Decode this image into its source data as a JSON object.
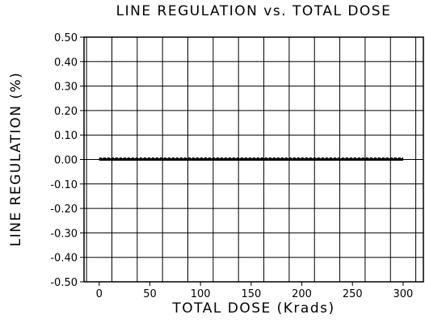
{
  "chart_data": {
    "type": "line",
    "title": "LINE REGULATION vs. TOTAL DOSE",
    "xlabel": "TOTAL DOSE (Krads)",
    "ylabel": "LINE REGULATION (%)",
    "xlim": [
      -15,
      320
    ],
    "ylim": [
      -0.5,
      0.5
    ],
    "x_ticks": [
      0,
      50,
      100,
      150,
      200,
      250,
      300
    ],
    "x_tick_labels": [
      "0",
      "50",
      "100",
      "150",
      "200",
      "250",
      "300"
    ],
    "y_ticks": [
      0.5,
      0.4,
      0.3,
      0.2,
      0.1,
      0.0,
      -0.1,
      -0.2,
      -0.3,
      -0.4,
      -0.5
    ],
    "y_tick_labels": [
      "0.50",
      "0.40",
      "0.30",
      "0.20",
      "0.10",
      "0.00",
      "-0.10",
      "-0.20",
      "-0.30",
      "-0.40",
      "-0.50"
    ],
    "grid": true,
    "series": [
      {
        "style": "dashed",
        "x": [
          0,
          300
        ],
        "y": [
          0.005,
          0.005
        ]
      },
      {
        "style": "solid",
        "x": [
          0,
          300
        ],
        "y": [
          0.0,
          0.0
        ]
      }
    ]
  }
}
